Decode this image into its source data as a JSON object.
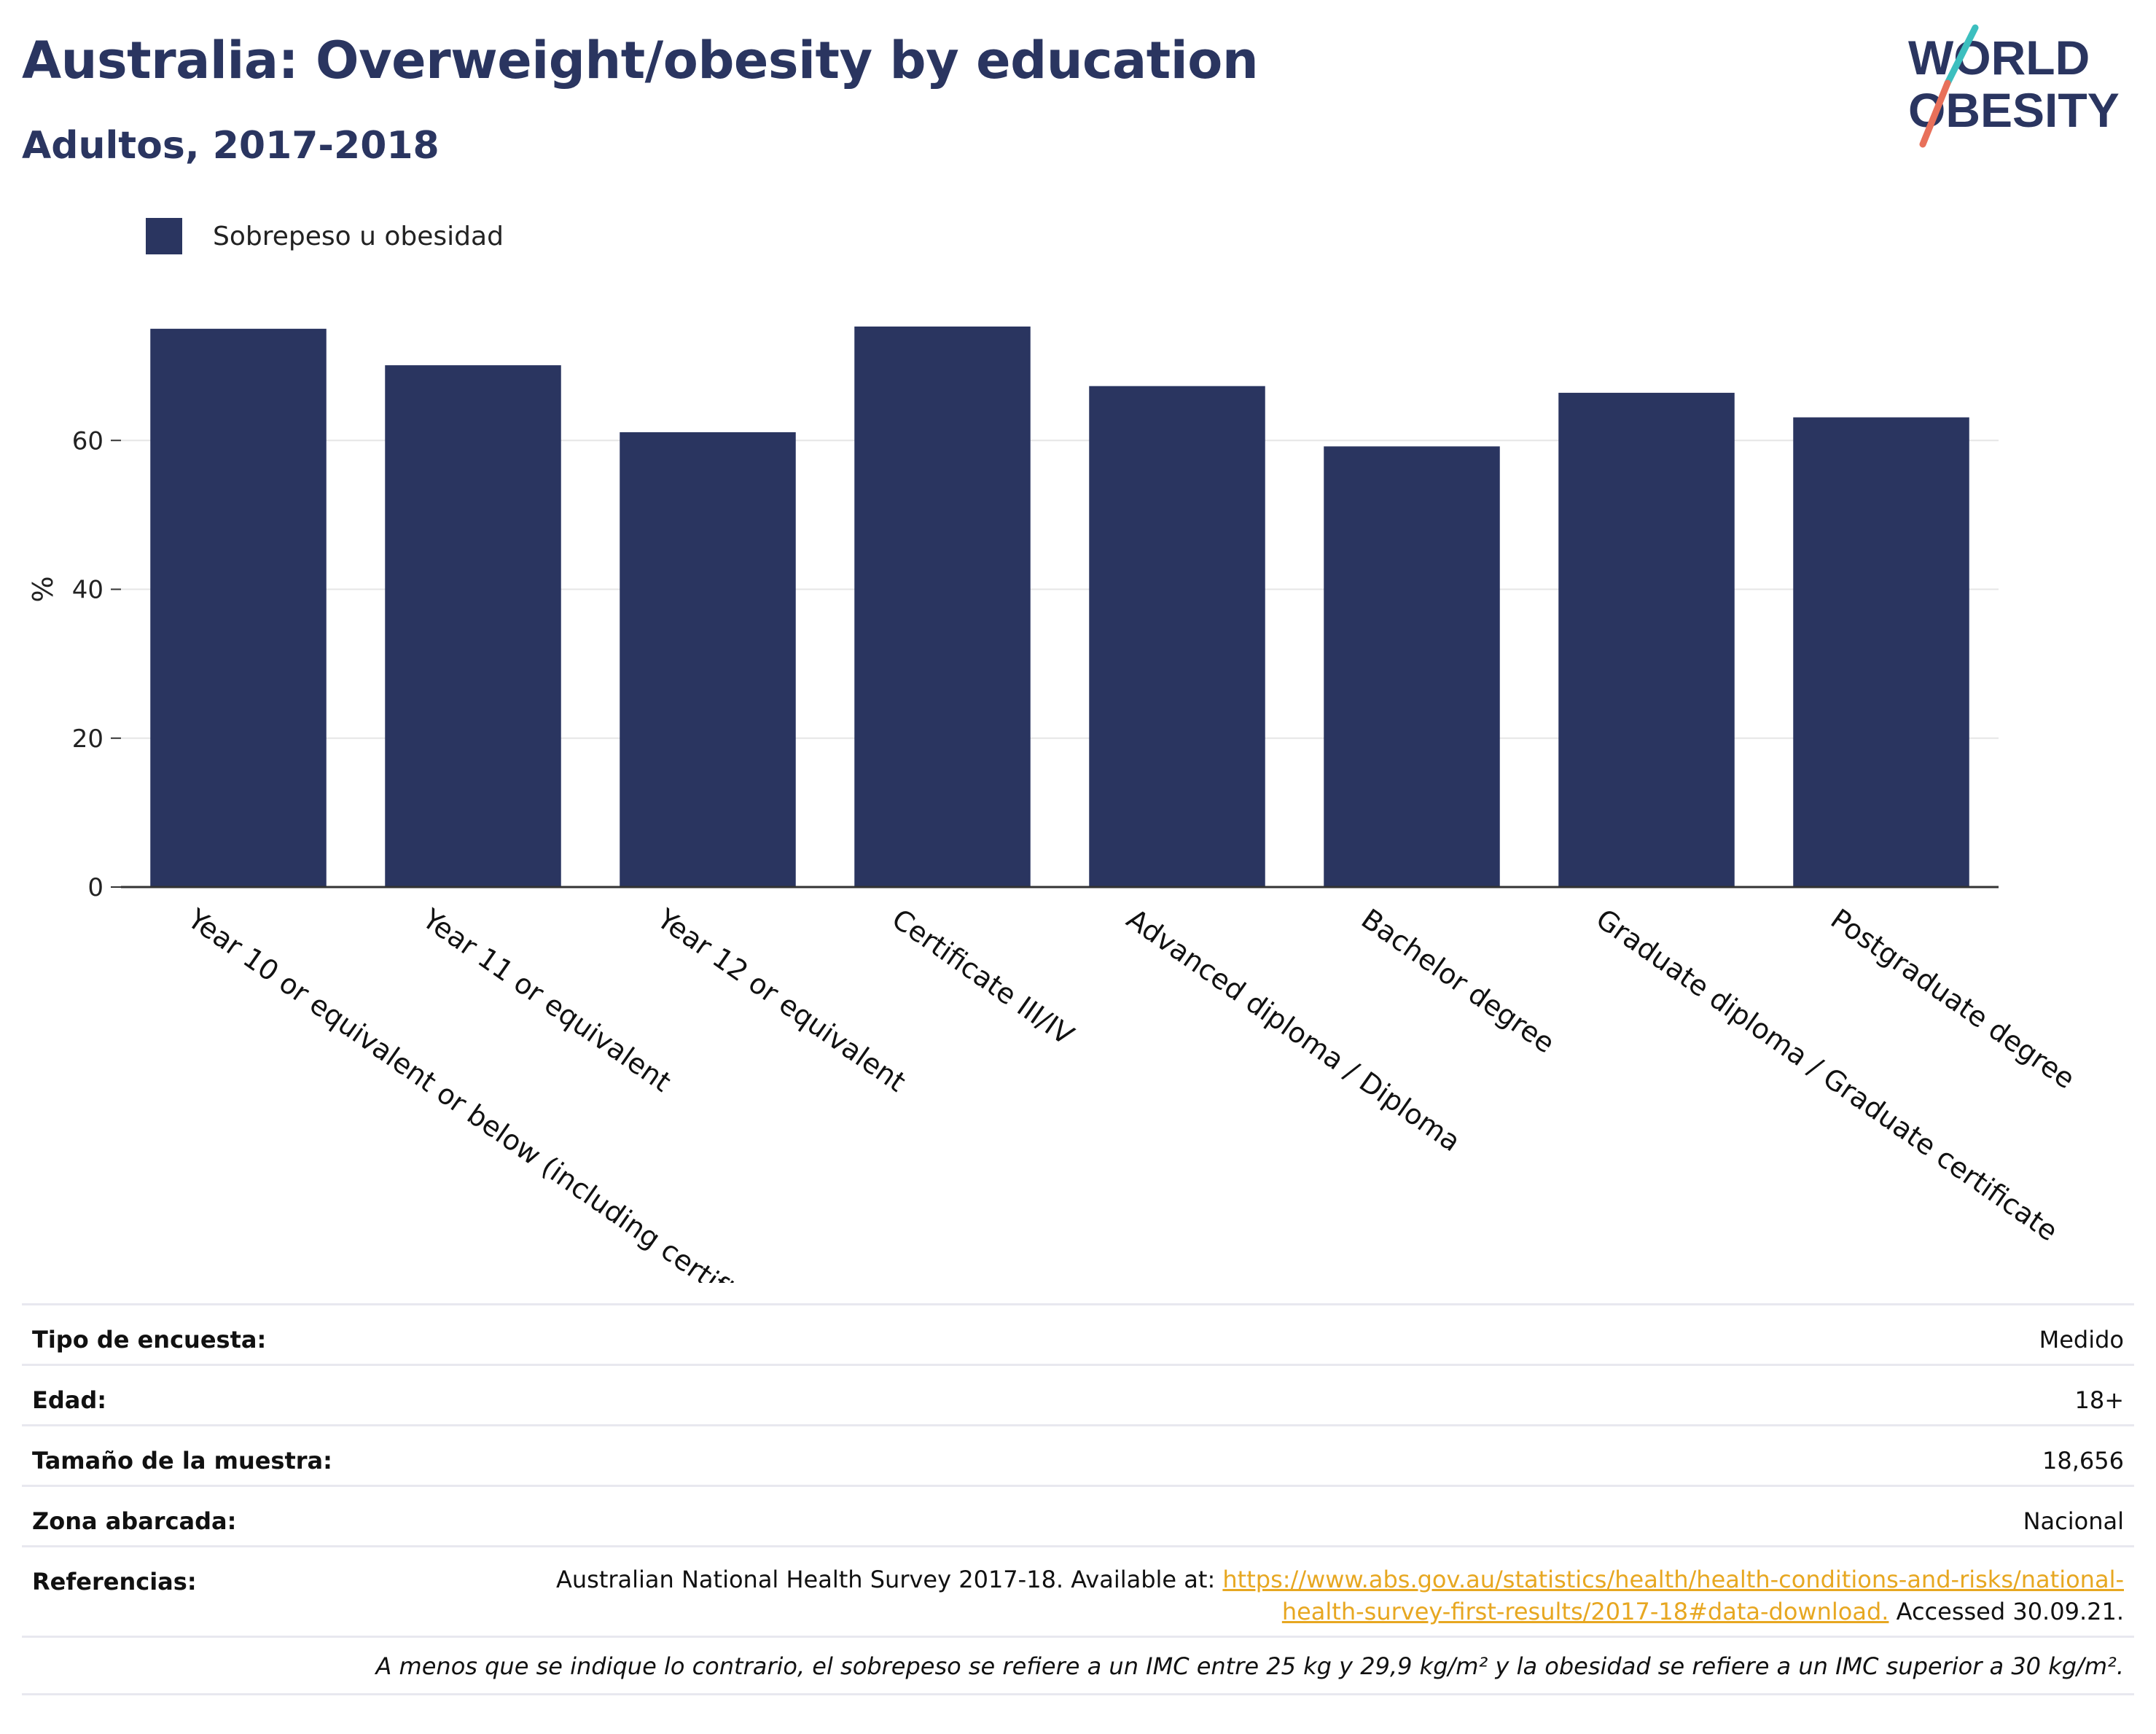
{
  "header": {
    "title": "Australia: Overweight/obesity by education",
    "subtitle": "Adultos, 2017-2018"
  },
  "logo": {
    "line1": "WORLD",
    "line2": "OBESITY",
    "colors": {
      "text": "#2a3560",
      "teal": "#3cbfbf",
      "coral": "#e8705a"
    }
  },
  "legend": {
    "label": "Sobrepeso u obesidad"
  },
  "colors": {
    "bar": "#2a3560",
    "grid": "#e6e6e6",
    "axis": "#333333",
    "link": "#e7a721"
  },
  "chart_data": {
    "type": "bar",
    "categories": [
      "Year 10 or equivalent or below (including certific",
      "Year 11 or equivalent",
      "Year 12 or equivalent",
      "Certificate III/IV",
      "Advanced diploma / Diploma",
      "Bachelor degree",
      "Graduate diploma / Graduate certificate",
      "Postgraduate degree"
    ],
    "series": [
      {
        "name": "Sobrepeso u obesidad",
        "values": [
          75.0,
          70.1,
          61.1,
          75.3,
          67.3,
          59.2,
          66.4,
          63.1
        ]
      }
    ],
    "ylabel": "%",
    "yticks": [
      0,
      20,
      40,
      60
    ],
    "ylim": [
      0,
      80
    ],
    "grid": true,
    "legend_position": "top-left"
  },
  "meta": {
    "survey_type": {
      "label": "Tipo de encuesta:",
      "value": "Medido"
    },
    "age": {
      "label": "Edad:",
      "value": "18+"
    },
    "sample_size": {
      "label": "Tamaño de la muestra:",
      "value": "18,656"
    },
    "area": {
      "label": "Zona abarcada:",
      "value": "Nacional"
    },
    "references": {
      "label": "Referencias:",
      "prefix": "Australian National Health Survey 2017-18. Available at: ",
      "link_line1": "https://www.abs.gov.au/statistics/health/health-conditions-and-risks/national-",
      "link_line2": "health-survey-first-results/2017-18#data-download.",
      "suffix": " Accessed 30.09.21."
    },
    "footnote": "A menos que se indique lo contrario, el sobrepeso se refiere a un IMC entre 25 kg y 29,9 kg/m² y la obesidad se refiere a un IMC superior a 30 kg/m²."
  }
}
